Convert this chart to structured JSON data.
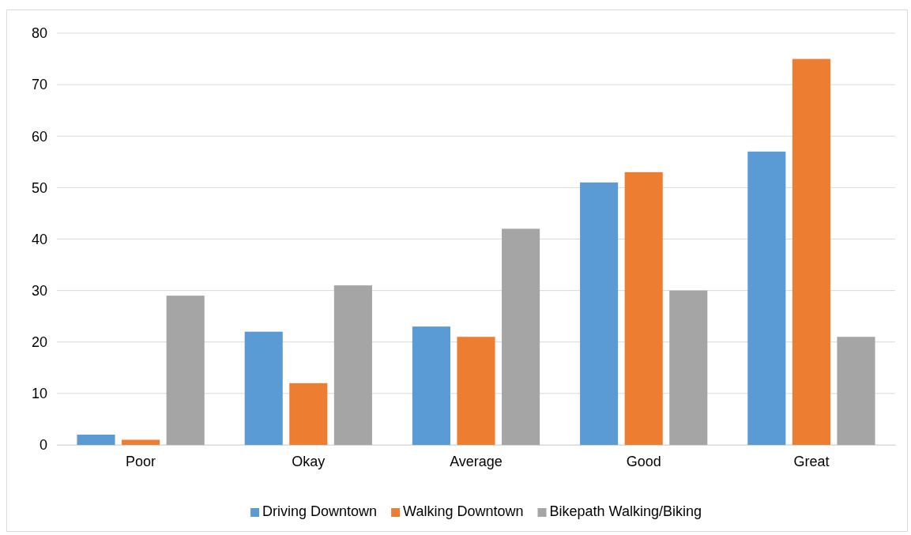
{
  "chart_data": {
    "type": "bar",
    "categories": [
      "Poor",
      "Okay",
      "Average",
      "Good",
      "Great"
    ],
    "series": [
      {
        "name": "Driving Downtown",
        "color": "#5b9bd5",
        "values": [
          2,
          22,
          23,
          51,
          57
        ]
      },
      {
        "name": "Walking Downtown",
        "color": "#ed7d31",
        "values": [
          1,
          12,
          21,
          53,
          75
        ]
      },
      {
        "name": "Bikepath Walking/Biking",
        "color": "#a5a5a5",
        "values": [
          29,
          31,
          42,
          30,
          21
        ]
      }
    ],
    "ylim": [
      0,
      80
    ],
    "yticks": [
      0,
      10,
      20,
      30,
      40,
      50,
      60,
      70,
      80
    ],
    "grid": "y",
    "legend": "bottom"
  }
}
